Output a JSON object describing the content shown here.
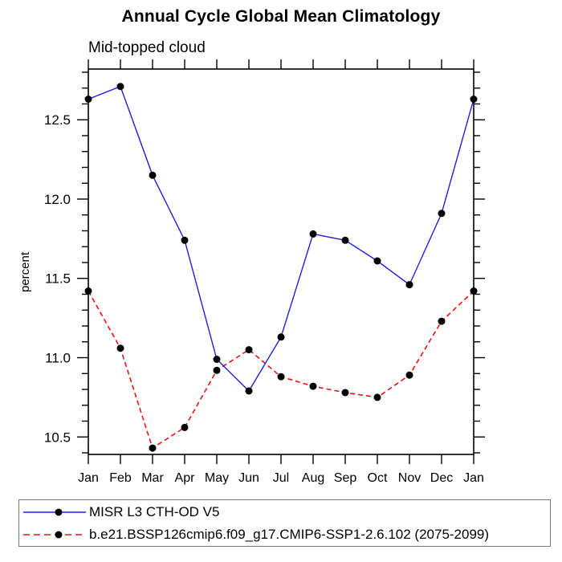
{
  "title": "Annual Cycle Global Mean Climatology",
  "subtitle": "Mid-topped cloud",
  "ylabel": "percent",
  "colors": {
    "obs_line": "#2020df",
    "model_line": "#ee1111",
    "marker": "#000000",
    "axis": "#000000",
    "legend_border": "#7a7a7a"
  },
  "chart_data": {
    "type": "line",
    "title": "Annual Cycle Global Mean Climatology",
    "subtitle": "Mid-topped cloud",
    "xlabel": "",
    "ylabel": "percent",
    "categories": [
      "Jan",
      "Feb",
      "Mar",
      "Apr",
      "May",
      "Jun",
      "Jul",
      "Aug",
      "Sep",
      "Oct",
      "Nov",
      "Dec",
      "Jan"
    ],
    "series": [
      {
        "name": "MISR L3 CTH-OD V5",
        "color": "#2020df",
        "line_style": "solid",
        "marker": "filled-black-circle",
        "values": [
          12.63,
          12.71,
          12.15,
          11.74,
          10.99,
          10.79,
          11.13,
          11.78,
          11.74,
          11.61,
          11.46,
          11.91,
          12.63
        ]
      },
      {
        "name": "b.e21.BSSP126cmip6.f09_g17.CMIP6-SSP1-2.6.102 (2075-2099)",
        "color": "#ee1111",
        "line_style": "dashed",
        "marker": "filled-black-circle",
        "values": [
          11.42,
          11.06,
          10.43,
          10.56,
          10.92,
          11.05,
          10.88,
          10.82,
          10.78,
          10.75,
          10.89,
          11.23,
          11.42
        ]
      }
    ],
    "ylim": [
      10.39,
      12.82
    ],
    "yticks_major": [
      10.5,
      11.0,
      11.5,
      12.0,
      12.5
    ],
    "ytick_labels": [
      "10.5",
      "11.0",
      "11.5",
      "12.0",
      "12.5"
    ],
    "ytick_minor_step": 0.1,
    "grid": false,
    "tick_direction": "out",
    "legend_position": "bottom"
  }
}
